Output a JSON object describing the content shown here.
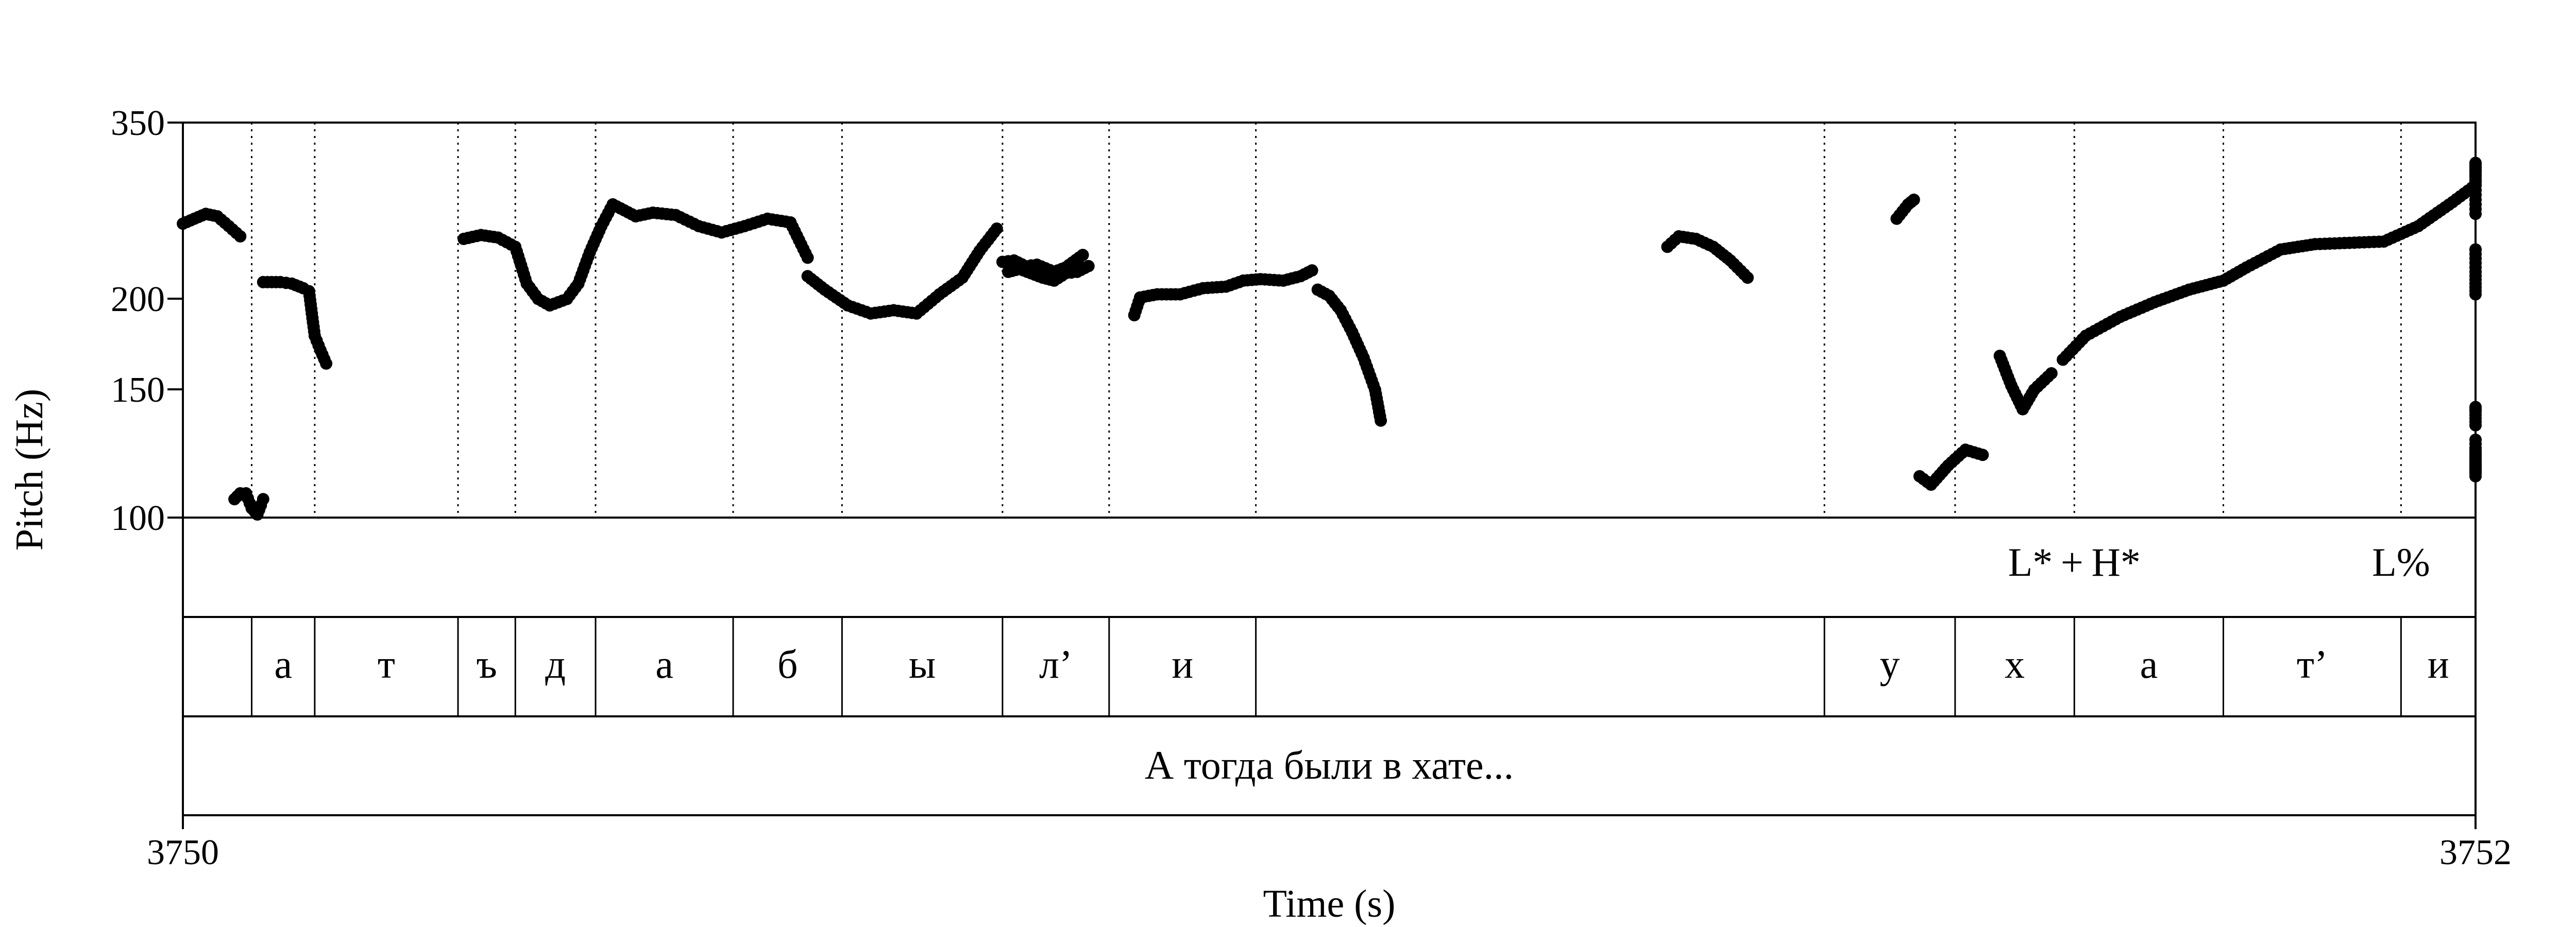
{
  "chart_data": {
    "type": "scatter",
    "title": "",
    "xlabel": "Time (s)",
    "ylabel": "Pitch (Hz)",
    "xlim": [
      3750,
      3752
    ],
    "ylim": [
      100,
      350
    ],
    "yscale": "log",
    "x_tick_labels": [
      "3750",
      "3752"
    ],
    "y_ticks": [
      {
        "value": 350,
        "label": "350"
      },
      {
        "value": 200,
        "label": "200"
      },
      {
        "value": 150,
        "label": "150"
      },
      {
        "value": 100,
        "label": "100"
      }
    ],
    "pitch_segments": [
      {
        "points": [
          [
            3750.0,
            254
          ],
          [
            3750.01,
            258
          ],
          [
            3750.02,
            262
          ],
          [
            3750.03,
            260
          ],
          [
            3750.04,
            252
          ],
          [
            3750.05,
            244
          ]
        ]
      },
      {
        "points": [
          [
            3750.045,
            106
          ],
          [
            3750.05,
            108
          ],
          [
            3750.055,
            108
          ],
          [
            3750.06,
            103
          ],
          [
            3750.065,
            101
          ]
        ]
      },
      {
        "points": [
          [
            3750.065,
            101
          ],
          [
            3750.068,
            104
          ],
          [
            3750.07,
            106
          ]
        ]
      },
      {
        "points": [
          [
            3750.07,
            211
          ],
          [
            3750.085,
            211
          ],
          [
            3750.095,
            210
          ],
          [
            3750.105,
            207
          ],
          [
            3750.11,
            205
          ],
          [
            3750.115,
            178
          ],
          [
            3750.12,
            170
          ],
          [
            3750.125,
            163
          ]
        ]
      },
      {
        "points": [
          [
            3750.245,
            242
          ],
          [
            3750.26,
            245
          ],
          [
            3750.275,
            243
          ],
          [
            3750.29,
            236
          ],
          [
            3750.3,
            210
          ],
          [
            3750.31,
            200
          ],
          [
            3750.32,
            196
          ],
          [
            3750.335,
            200
          ],
          [
            3750.345,
            210
          ],
          [
            3750.355,
            232
          ],
          [
            3750.365,
            252
          ],
          [
            3750.375,
            270
          ],
          [
            3750.385,
            265
          ],
          [
            3750.395,
            260
          ],
          [
            3750.41,
            263
          ],
          [
            3750.43,
            261
          ],
          [
            3750.45,
            252
          ],
          [
            3750.47,
            247
          ],
          [
            3750.49,
            252
          ],
          [
            3750.51,
            258
          ],
          [
            3750.53,
            255
          ],
          [
            3750.545,
            228
          ]
        ]
      },
      {
        "points": [
          [
            3750.545,
            215
          ],
          [
            3750.56,
            206
          ],
          [
            3750.58,
            196
          ],
          [
            3750.6,
            191
          ],
          [
            3750.62,
            193
          ],
          [
            3750.64,
            191
          ],
          [
            3750.66,
            203
          ],
          [
            3750.68,
            214
          ],
          [
            3750.695,
            233
          ],
          [
            3750.71,
            250
          ]
        ]
      },
      {
        "points": [
          [
            3750.72,
            218
          ],
          [
            3750.73,
            220
          ],
          [
            3750.74,
            217
          ],
          [
            3750.75,
            214
          ],
          [
            3750.76,
            212
          ],
          [
            3750.77,
            217
          ],
          [
            3750.78,
            218
          ],
          [
            3750.79,
            222
          ]
        ]
      },
      {
        "points": [
          [
            3750.715,
            225
          ],
          [
            3750.725,
            226
          ],
          [
            3750.735,
            222
          ],
          [
            3750.745,
            223
          ],
          [
            3750.76,
            218
          ],
          [
            3750.77,
            221
          ],
          [
            3750.785,
            230
          ]
        ]
      },
      {
        "points": [
          [
            3750.83,
            190
          ],
          [
            3750.835,
            201
          ],
          [
            3750.85,
            203
          ],
          [
            3750.87,
            203
          ],
          [
            3750.89,
            207
          ],
          [
            3750.91,
            208
          ],
          [
            3750.925,
            212
          ],
          [
            3750.94,
            213
          ],
          [
            3750.96,
            212
          ],
          [
            3750.975,
            215
          ],
          [
            3750.985,
            219
          ]
        ]
      },
      {
        "points": [
          [
            3750.99,
            206
          ],
          [
            3751.0,
            202
          ],
          [
            3751.01,
            193
          ],
          [
            3751.02,
            180
          ],
          [
            3751.03,
            166
          ],
          [
            3751.04,
            150
          ],
          [
            3751.045,
            136
          ]
        ]
      },
      {
        "points": [
          [
            3751.295,
            236
          ],
          [
            3751.305,
            244
          ],
          [
            3751.32,
            242
          ],
          [
            3751.335,
            236
          ],
          [
            3751.35,
            226
          ],
          [
            3751.365,
            214
          ]
        ]
      },
      {
        "points": [
          [
            3751.495,
            258
          ],
          [
            3751.505,
            270
          ],
          [
            3751.51,
            274
          ]
        ]
      },
      {
        "points": [
          [
            3751.515,
            114
          ],
          [
            3751.525,
            111
          ],
          [
            3751.54,
            118
          ],
          [
            3751.555,
            124
          ],
          [
            3751.57,
            122
          ]
        ]
      },
      {
        "points": [
          [
            3751.585,
            167
          ],
          [
            3751.595,
            152
          ],
          [
            3751.605,
            141
          ],
          [
            3751.615,
            150
          ],
          [
            3751.63,
            158
          ]
        ]
      },
      {
        "points": [
          [
            3751.64,
            165
          ],
          [
            3751.66,
            178
          ],
          [
            3751.69,
            189
          ],
          [
            3751.72,
            198
          ],
          [
            3751.75,
            206
          ],
          [
            3751.78,
            212
          ],
          [
            3751.8,
            221
          ],
          [
            3751.83,
            234
          ],
          [
            3751.86,
            238
          ],
          [
            3751.89,
            239
          ],
          [
            3751.92,
            240
          ],
          [
            3751.95,
            252
          ],
          [
            3751.98,
            272
          ],
          [
            3752.01,
            295
          ],
          [
            3752.03,
            308
          ],
          [
            3752.045,
            300
          ],
          [
            3752.05,
            262
          ]
        ]
      },
      {
        "points": [
          [
            3752.185,
            234
          ],
          [
            3752.19,
            234
          ],
          [
            3752.195,
            218
          ],
          [
            3752.2,
            210
          ],
          [
            3752.205,
            203
          ]
        ]
      },
      {
        "points": [
          [
            3752.25,
            142
          ],
          [
            3752.26,
            140
          ],
          [
            3752.27,
            134
          ]
        ]
      },
      {
        "points": [
          [
            3752.3,
            128
          ],
          [
            3752.31,
            120
          ],
          [
            3752.315,
            118
          ],
          [
            3752.32,
            114
          ],
          [
            3752.33,
            124
          ],
          [
            3752.34,
            120
          ],
          [
            3752.35,
            117
          ],
          [
            3752.355,
            115
          ]
        ]
      }
    ]
  },
  "tiers": {
    "tones": {
      "boundaries": [
        3750.0,
        3750.06,
        3750.115,
        3750.24,
        3750.29,
        3750.36,
        3750.48,
        3750.575,
        3750.715,
        3750.808,
        3750.936,
        3751.432,
        3751.546,
        3751.65,
        3751.78,
        3751.935,
        3752.0
      ],
      "boundary_style": "dotted",
      "labels": [
        {
          "text": "L* + H*",
          "time": 3751.65
        },
        {
          "text": "L%",
          "time": 3751.935
        }
      ]
    },
    "segments": [
      {
        "text": "",
        "start": 3750.0,
        "end": 3750.06
      },
      {
        "text": "а",
        "start": 3750.06,
        "end": 3750.115
      },
      {
        "text": "т",
        "start": 3750.115,
        "end": 3750.24
      },
      {
        "text": "ъ",
        "start": 3750.24,
        "end": 3750.29
      },
      {
        "text": "д",
        "start": 3750.29,
        "end": 3750.36
      },
      {
        "text": "а",
        "start": 3750.36,
        "end": 3750.48
      },
      {
        "text": "б",
        "start": 3750.48,
        "end": 3750.575
      },
      {
        "text": "ы",
        "start": 3750.575,
        "end": 3750.715
      },
      {
        "text": "л’",
        "start": 3750.715,
        "end": 3750.808
      },
      {
        "text": "и",
        "start": 3750.808,
        "end": 3750.936
      },
      {
        "text": "",
        "start": 3750.936,
        "end": 3751.432
      },
      {
        "text": "у",
        "start": 3751.432,
        "end": 3751.546
      },
      {
        "text": "х",
        "start": 3751.546,
        "end": 3751.65
      },
      {
        "text": "а",
        "start": 3751.65,
        "end": 3751.78
      },
      {
        "text": "т’",
        "start": 3751.78,
        "end": 3751.935
      },
      {
        "text": "и",
        "start": 3751.935,
        "end": 3752.0
      }
    ],
    "sentence": {
      "text": "А тогда были в хате...",
      "start": 3750.0,
      "end": 3752.0
    }
  }
}
